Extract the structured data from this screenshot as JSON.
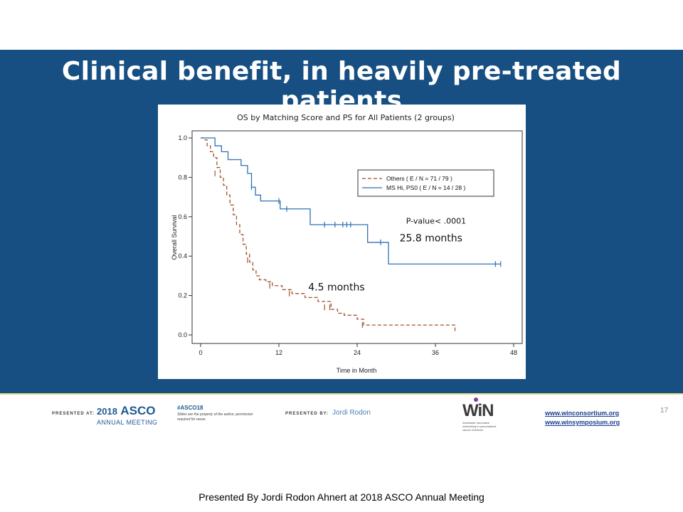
{
  "slide": {
    "title": "Clinical benefit, in heavily pre-treated patients",
    "caption": "Presented By Jordi Rodon Ahnert at 2018 ASCO Annual Meeting",
    "page_number": "17",
    "colors": {
      "banner": "#174f83",
      "accent_line": "#e5e089"
    }
  },
  "footer": {
    "presented_at_label": "PRESENTED AT:",
    "asco_year": "2018",
    "asco_name": "ASCO",
    "asco_sub": "ANNUAL MEETING",
    "hashtag": "#ASCO18",
    "hashtag_note": "Slides are the property of the author, permission required for reuse.",
    "presented_by_label": "PRESENTED BY:",
    "presenter": "Jordi Rodon",
    "win_logo_text": "WiN",
    "win_tagline": "Worldwide Innovative networking in personalized cancer medicine",
    "link1": "www.winconsortium.org",
    "link2": "www.winsymposium.org"
  },
  "chart_data": {
    "type": "line",
    "title": "OS by Matching Score and PS for All Patients (2 groups)",
    "xlabel": "Time in Month",
    "ylabel": "Overall Survival",
    "xlim": [
      0,
      48
    ],
    "ylim": [
      0,
      1.0
    ],
    "xticks": [
      0,
      12,
      24,
      36,
      48
    ],
    "yticks": [
      0.0,
      0.2,
      0.4,
      0.6,
      0.8,
      1.0
    ],
    "xtick_labels": [
      "0",
      "12",
      "24",
      "36",
      "48"
    ],
    "ytick_labels": [
      "0.0",
      "0.2",
      "0.4",
      "0.6",
      "0.8",
      "1.0"
    ],
    "legend_position": "upper-right",
    "series": [
      {
        "name": "Others ( E / N = 71 / 79 )",
        "color": "#a0522d",
        "dash": true,
        "steps": [
          [
            0,
            1.0
          ],
          [
            0.5,
            0.99
          ],
          [
            1.0,
            0.96
          ],
          [
            1.5,
            0.93
          ],
          [
            2.0,
            0.9
          ],
          [
            2.5,
            0.85
          ],
          [
            3.0,
            0.8
          ],
          [
            3.5,
            0.76
          ],
          [
            4.0,
            0.71
          ],
          [
            4.5,
            0.66
          ],
          [
            5.0,
            0.61
          ],
          [
            5.5,
            0.56
          ],
          [
            6.0,
            0.51
          ],
          [
            6.5,
            0.46
          ],
          [
            7.0,
            0.41
          ],
          [
            7.5,
            0.37
          ],
          [
            8.0,
            0.33
          ],
          [
            8.5,
            0.3
          ],
          [
            9.0,
            0.28
          ],
          [
            10.0,
            0.27
          ],
          [
            11.0,
            0.25
          ],
          [
            12.5,
            0.23
          ],
          [
            14.0,
            0.21
          ],
          [
            16.0,
            0.19
          ],
          [
            18.0,
            0.17
          ],
          [
            20.0,
            0.13
          ],
          [
            21.0,
            0.11
          ],
          [
            22.0,
            0.1
          ],
          [
            24.0,
            0.08
          ],
          [
            25.0,
            0.05
          ],
          [
            39.0,
            0.02
          ]
        ],
        "end_x": 39,
        "censored": [
          [
            2.2,
            0.82
          ],
          [
            7.2,
            0.38
          ],
          [
            10.6,
            0.25
          ],
          [
            13.6,
            0.21
          ],
          [
            19.0,
            0.14
          ],
          [
            19.8,
            0.14
          ],
          [
            24.8,
            0.05
          ]
        ]
      },
      {
        "name": "MS Hi, PS0 ( E / N = 14 / 28 )",
        "color": "#2e72b8",
        "dash": false,
        "steps": [
          [
            0,
            1.0
          ],
          [
            2.2,
            0.96
          ],
          [
            3.2,
            0.93
          ],
          [
            4.2,
            0.89
          ],
          [
            6.2,
            0.86
          ],
          [
            7.2,
            0.82
          ],
          [
            7.8,
            0.75
          ],
          [
            8.4,
            0.71
          ],
          [
            9.2,
            0.68
          ],
          [
            12.0,
            0.68
          ],
          [
            12.2,
            0.64
          ],
          [
            16.8,
            0.56
          ],
          [
            25.6,
            0.47
          ],
          [
            28.8,
            0.36
          ],
          [
            46.0,
            0.36
          ]
        ],
        "end_x": 46,
        "censored": [
          [
            7.8,
            0.75
          ],
          [
            12.0,
            0.68
          ],
          [
            13.2,
            0.64
          ],
          [
            19.0,
            0.56
          ],
          [
            20.6,
            0.56
          ],
          [
            21.8,
            0.56
          ],
          [
            22.4,
            0.56
          ],
          [
            23.0,
            0.56
          ],
          [
            27.6,
            0.47
          ],
          [
            45.2,
            0.36
          ],
          [
            46.0,
            0.36
          ]
        ]
      }
    ],
    "annotations": [
      {
        "text": "P-value< .0001",
        "x": 31.5,
        "y": 0.565
      },
      {
        "text": "25.8 months",
        "x": 30.5,
        "y": 0.475
      },
      {
        "text": "4.5 months",
        "x": 16.5,
        "y": 0.225
      }
    ]
  }
}
